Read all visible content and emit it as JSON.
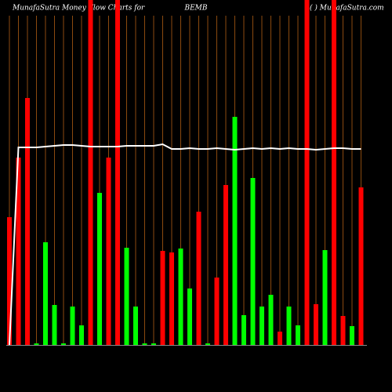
{
  "chart_data": {
    "type": "bar",
    "title_left": "MunafaSutra  Money Flow  Charts for",
    "title_center": "BEMB",
    "title_right": "( ) MunafaSutra.com",
    "categories": [
      null,
      null,
      null,
      null,
      null,
      null,
      null,
      null,
      null,
      null,
      null,
      null,
      null,
      null,
      null,
      null,
      null,
      null,
      null,
      null,
      null,
      null,
      null,
      null,
      null,
      null,
      null,
      null,
      null,
      null,
      null,
      null,
      null,
      null,
      null,
      null,
      null,
      null,
      null,
      null
    ],
    "series": [
      {
        "name": "Money Flow",
        "up_color": "#00ff00",
        "down_color": "#ff0000",
        "direction": [
          "down",
          "down",
          "down",
          "up",
          "up",
          "up",
          "up",
          "up",
          "up",
          "down",
          "up",
          "down",
          "down",
          "up",
          "up",
          "up",
          "up",
          "down",
          "down",
          "up",
          "up",
          "down",
          "up",
          "down",
          "down",
          "up",
          "up",
          "up",
          "up",
          "up",
          "down",
          "up",
          "up",
          "down",
          "down",
          "up",
          "down",
          "down",
          "up",
          "down"
        ],
        "values": [
          163,
          239,
          315,
          2,
          131,
          51,
          2,
          49,
          25,
          440,
          194,
          239,
          440,
          124,
          49,
          2,
          2,
          120,
          118,
          123,
          72,
          170,
          2,
          86,
          204,
          291,
          38,
          213,
          49,
          64,
          17,
          49,
          25,
          440,
          52,
          121,
          440,
          37,
          24,
          201
        ]
      },
      {
        "name": "Average",
        "type": "line",
        "color": "#ffffff",
        "values": [
          0,
          252,
          252,
          252,
          253,
          254,
          255,
          255,
          254,
          253,
          253,
          253,
          253,
          254,
          254,
          254,
          254,
          256,
          250,
          250,
          251,
          250,
          250,
          251,
          250,
          249,
          250,
          251,
          250,
          251,
          250,
          251,
          250,
          250,
          249,
          250,
          251,
          251,
          250,
          250
        ]
      }
    ],
    "ylim": [
      0,
      440
    ],
    "grid_color": "#8b4a0f"
  }
}
